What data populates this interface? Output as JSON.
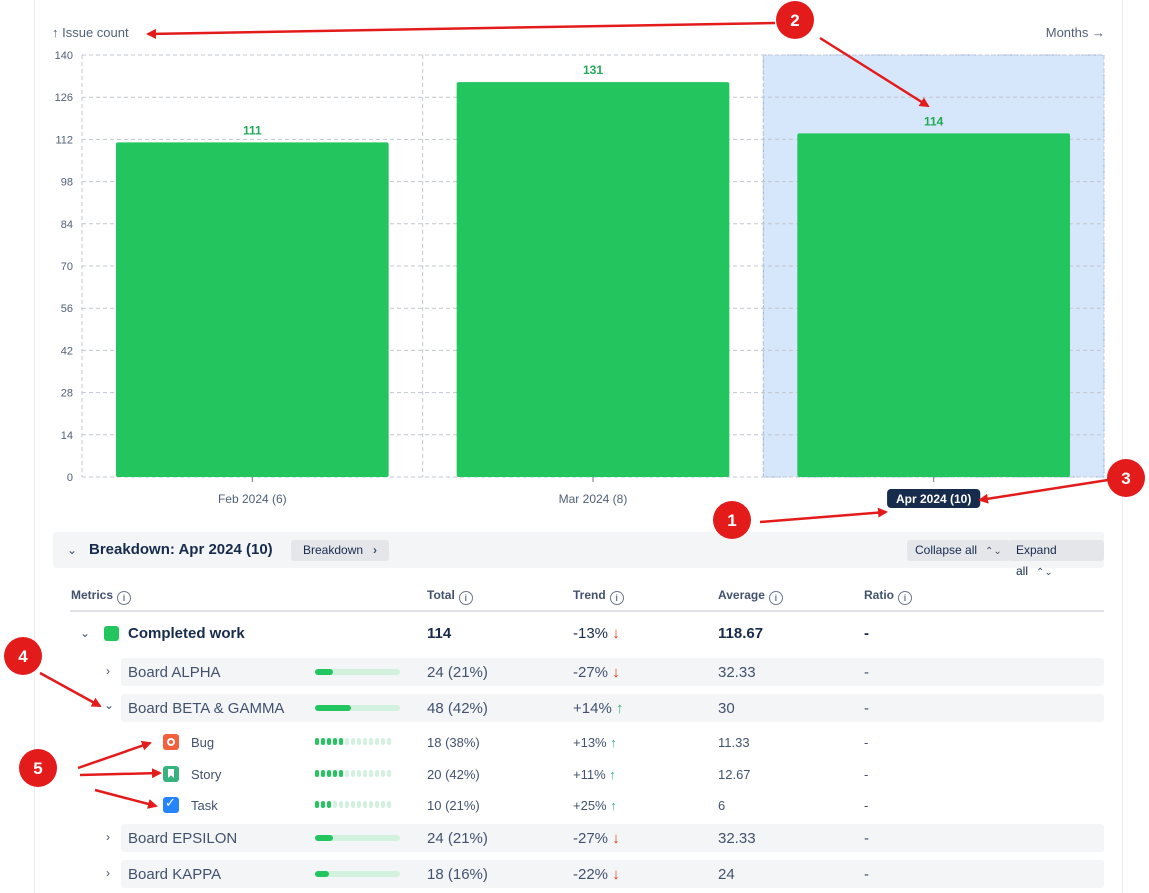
{
  "chart_data": {
    "type": "bar",
    "y_axis_title": "↑ Issue count",
    "x_axis_title": "Months →",
    "categories": [
      "Feb 2024 (6)",
      "Mar 2024 (8)",
      "Apr 2024 (10)"
    ],
    "values": [
      111,
      131,
      114
    ],
    "ylim": [
      0,
      140
    ],
    "y_ticks": [
      0,
      14,
      28,
      42,
      56,
      70,
      84,
      98,
      112,
      126,
      140
    ],
    "selected_category": "Apr 2024 (10)",
    "grid": true,
    "colors": {
      "bar": "#22c55e",
      "label": "#22a857",
      "selected_bg": "#d6e6fb",
      "tooltip_bg": "#172b4d"
    }
  },
  "breakdown": {
    "title": "Breakdown: Apr 2024 (10)",
    "breakdown_button": "Breakdown",
    "collapse_all": "Collapse all",
    "expand_all": "Expand all"
  },
  "table": {
    "headers": {
      "metrics": "Metrics",
      "total": "Total",
      "trend": "Trend",
      "average": "Average",
      "ratio": "Ratio"
    },
    "rows": [
      {
        "name": "Completed work",
        "total": "114",
        "trend": "-13%",
        "trend_arrow": "↓",
        "average": "118.67",
        "ratio": "-",
        "swatch_color": "#22c55e"
      },
      {
        "name": "Board ALPHA",
        "total": "24 (21%)",
        "trend": "-27%",
        "trend_arrow": "↓",
        "average": "32.33",
        "ratio": "-",
        "share": 0.21
      },
      {
        "name": "Board BETA & GAMMA",
        "total": "48 (42%)",
        "trend": "+14%",
        "trend_arrow": "↑",
        "average": "30",
        "ratio": "-",
        "share": 0.42
      },
      {
        "name": "Bug",
        "total": "18 (38%)",
        "trend": "+13%",
        "trend_arrow": "↑",
        "average": "11.33",
        "ratio": "-",
        "share": 0.38,
        "icon": "bug-icon"
      },
      {
        "name": "Story",
        "total": "20 (42%)",
        "trend": "+11%",
        "trend_arrow": "↑",
        "average": "12.67",
        "ratio": "-",
        "share": 0.42,
        "icon": "story-icon"
      },
      {
        "name": "Task",
        "total": "10 (21%)",
        "trend": "+25%",
        "trend_arrow": "↑",
        "average": "6",
        "ratio": "-",
        "share": 0.21,
        "icon": "task-icon"
      },
      {
        "name": "Board EPSILON",
        "total": "24 (21%)",
        "trend": "-27%",
        "trend_arrow": "↓",
        "average": "32.33",
        "ratio": "-",
        "share": 0.21
      },
      {
        "name": "Board KAPPA",
        "total": "18 (16%)",
        "trend": "-22%",
        "trend_arrow": "↓",
        "average": "24",
        "ratio": "-",
        "share": 0.16
      }
    ]
  },
  "annotations": [
    "1",
    "2",
    "3",
    "4",
    "5"
  ]
}
